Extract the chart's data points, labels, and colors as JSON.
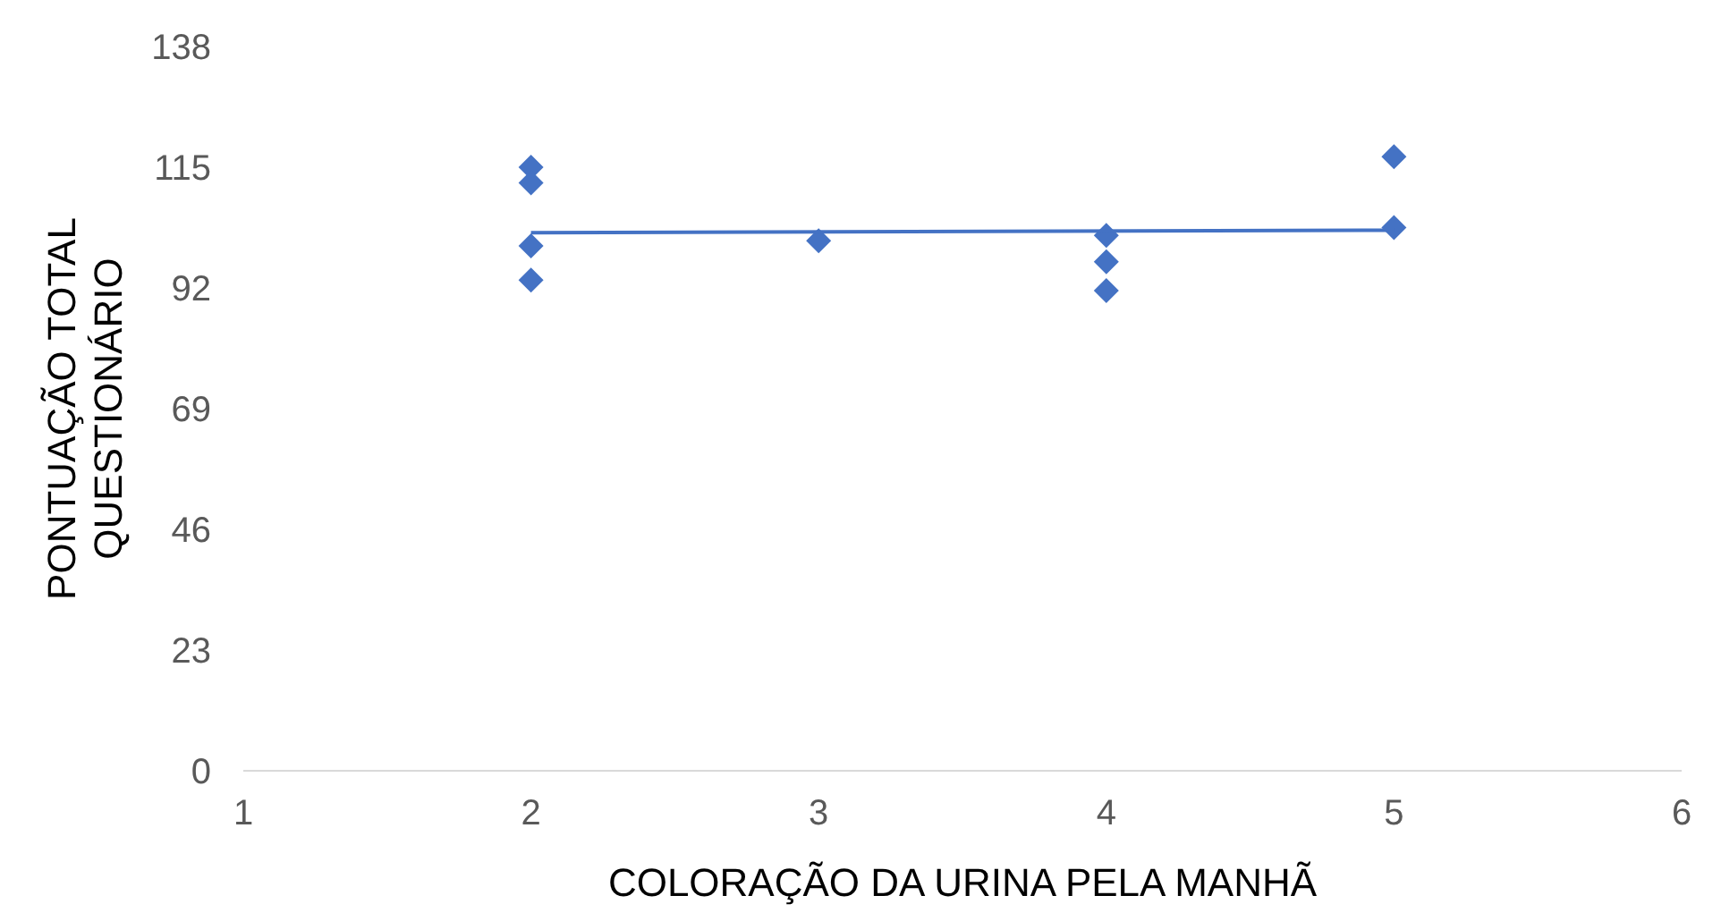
{
  "chart_data": {
    "type": "scatter",
    "xlabel": "COLORAÇÃO DA URINA PELA MANHÃ",
    "ylabel": "PONTUAÇÃO TOTAL\nQUESTIONÁRIO",
    "xlim": [
      1,
      6
    ],
    "xticks": [
      1,
      2,
      3,
      4,
      5,
      6
    ],
    "ylim": [
      0,
      138
    ],
    "yticks": [
      0,
      23,
      46,
      69,
      92,
      115,
      138
    ],
    "marker": "diamond",
    "series": [
      {
        "color": "#4472c4",
        "x": [
          2,
          2,
          2,
          2,
          3,
          4,
          4,
          4,
          5,
          5
        ],
        "values": [
          115,
          112,
          100,
          93.5,
          101,
          102,
          97,
          91.5,
          117,
          103.5
        ]
      },
      {
        "type": "line",
        "color": "#4472c4",
        "marker": "none",
        "x": [
          2,
          5
        ],
        "values": [
          102.5,
          103
        ]
      }
    ]
  }
}
